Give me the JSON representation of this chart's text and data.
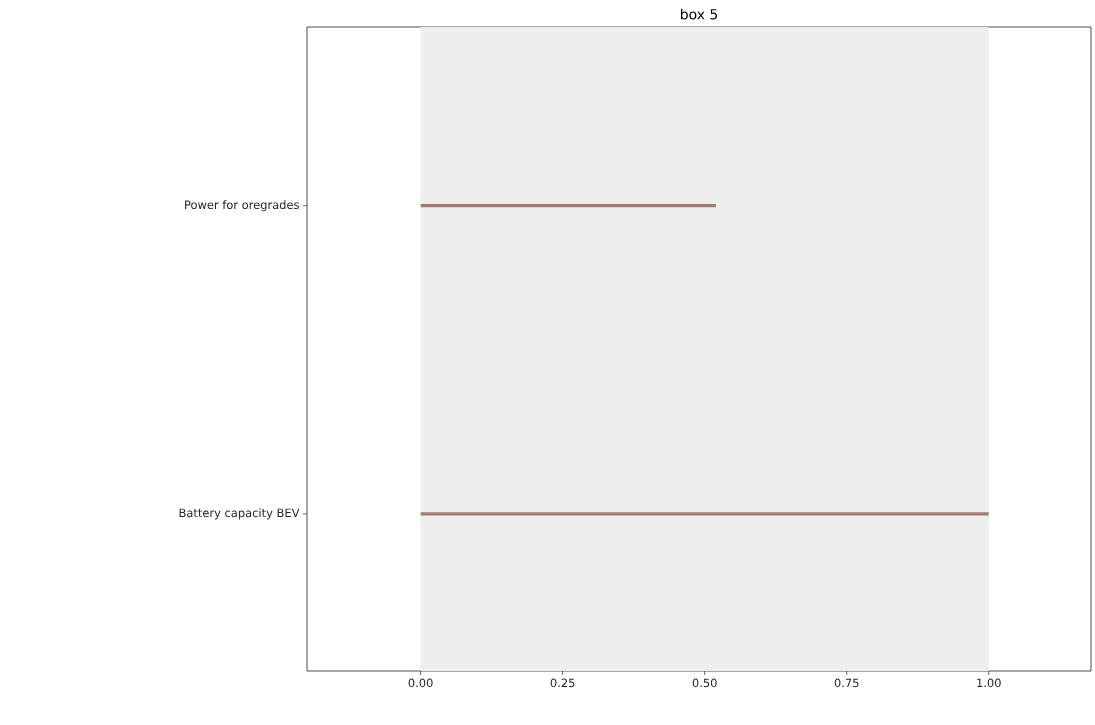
{
  "chart_data": {
    "type": "bar",
    "orientation": "horizontal",
    "title": "box 5",
    "categories": [
      "Power for oregrades",
      "Battery capacity BEV"
    ],
    "values": [
      0.52,
      1.0
    ],
    "color": "#a57b70",
    "xlim": [
      -0.2,
      1.18
    ],
    "xticks": [
      {
        "value": 0,
        "label": "0.00"
      },
      {
        "value": 0.25,
        "label": "0.25"
      },
      {
        "value": 0.5,
        "label": "0.50"
      },
      {
        "value": 0.75,
        "label": "0.75"
      },
      {
        "value": 1,
        "label": "1.00"
      }
    ],
    "bands": [
      {
        "axis": "x",
        "from": 0,
        "to": 1,
        "color": "#eeeeee"
      }
    ],
    "grid": false
  }
}
